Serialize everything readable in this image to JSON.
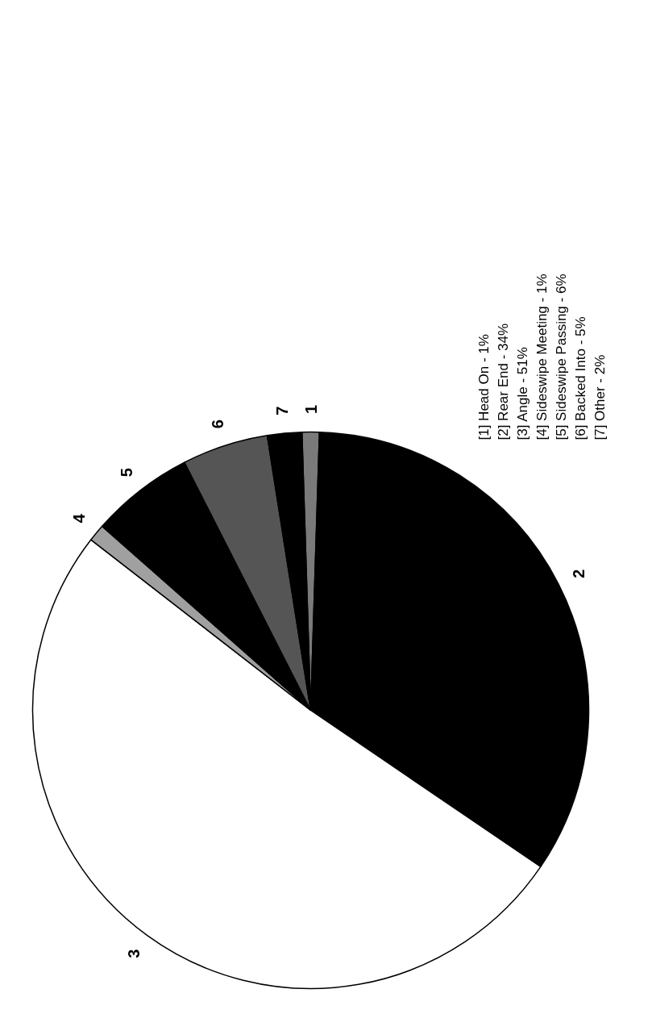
{
  "chart_data": {
    "type": "pie",
    "categories": [
      "1",
      "2",
      "3",
      "4",
      "5",
      "6",
      "7"
    ],
    "values": [
      1,
      34,
      51,
      1,
      6,
      5,
      2
    ],
    "colors": [
      "#7a7a7a",
      "#000000",
      "#ffffff",
      "#a0a0a0",
      "#000000",
      "#555555",
      "#000000"
    ],
    "annotations": [
      "[1]  Head On - 1%",
      "[2]  Rear End - 34%",
      "[3]  Angle - 51%",
      "[4]  Sideswipe Meeting - 1%",
      "[5]  Sideswipe Passing - 6%",
      "[6]  Backed Into - 5%",
      "[7]  Other - 2%"
    ]
  }
}
